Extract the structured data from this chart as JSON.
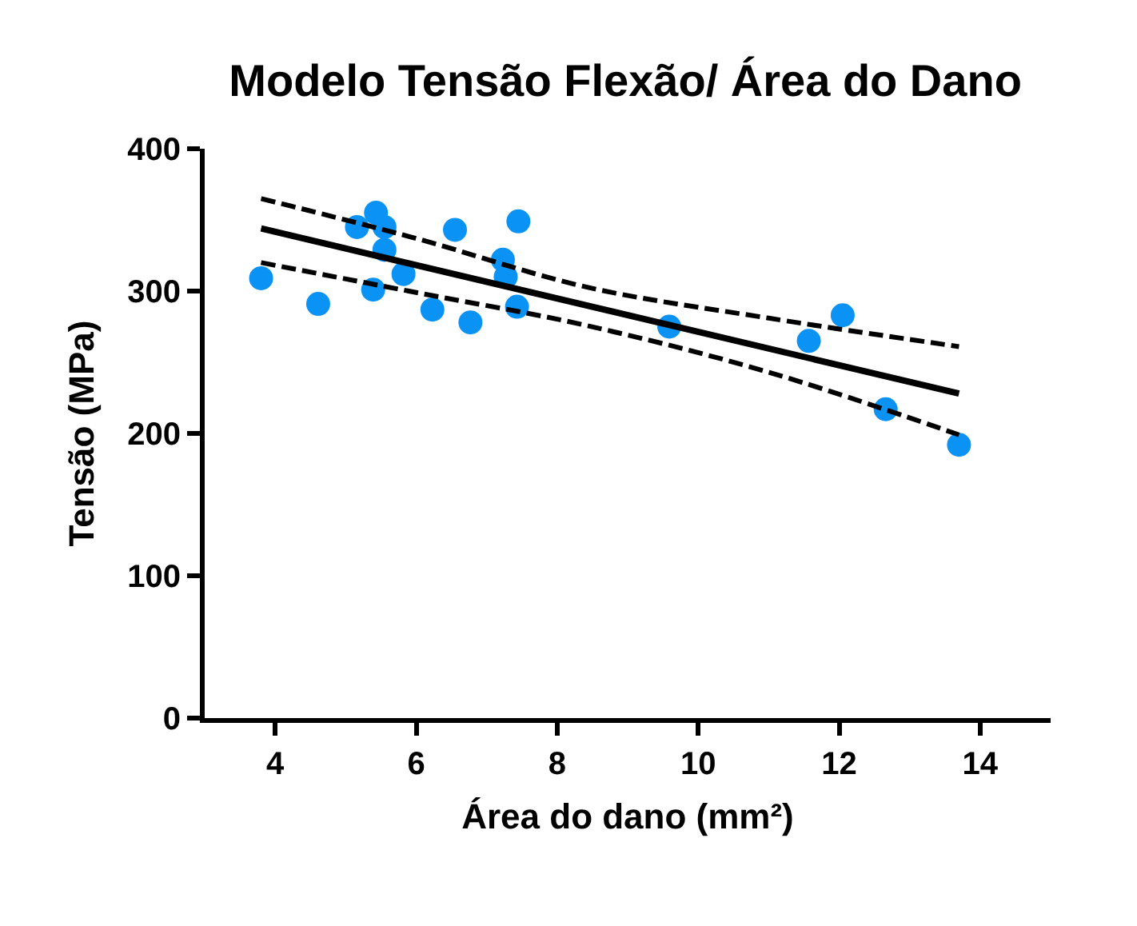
{
  "chart_data": {
    "type": "scatter",
    "title": "Modelo Tensão Flexão/ Área do Dano",
    "xlabel": "Área do dano (mm²)",
    "ylabel": "Tensão (MPa)",
    "xlim": [
      3,
      15
    ],
    "xticks": [
      4,
      6,
      8,
      10,
      12,
      14
    ],
    "ylim": [
      0,
      400
    ],
    "yticks": [
      0,
      100,
      200,
      300,
      400
    ],
    "series": [
      {
        "color": "#0a93f5",
        "marker": "circle",
        "x": [
          3.8,
          4.61,
          5.16,
          5.43,
          5.55,
          5.55,
          5.82,
          5.39,
          6.23,
          6.55,
          6.77,
          7.23,
          7.27,
          7.43,
          7.45,
          9.59,
          11.57,
          12.05,
          12.66,
          13.7
        ],
        "values": [
          309,
          291,
          345,
          355,
          345,
          329,
          312,
          301,
          287,
          343,
          278,
          322,
          310,
          289,
          349,
          275,
          265,
          283,
          217,
          192
        ]
      },
      {
        "type": "line",
        "color": "#000000",
        "line_style": "solid",
        "x": [
          3.8,
          13.7
        ],
        "values": [
          344,
          228
        ]
      },
      {
        "type": "line",
        "color": "#000000",
        "line_style": "dashed",
        "x": [
          3.8,
          6,
          8.4,
          11,
          13.7
        ],
        "values": [
          365,
          337,
          303,
          281,
          261
        ]
      },
      {
        "type": "line",
        "color": "#000000",
        "line_style": "dashed",
        "x": [
          3.8,
          6,
          8.4,
          11,
          13.7
        ],
        "values": [
          320,
          299,
          276,
          243,
          199
        ]
      }
    ]
  }
}
